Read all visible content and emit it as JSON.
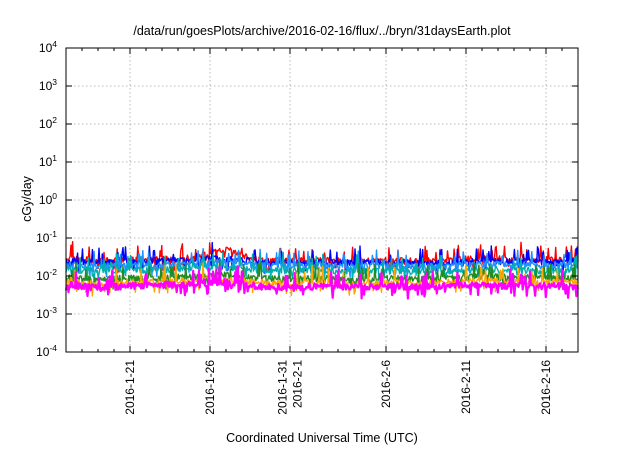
{
  "chart_data": {
    "type": "line",
    "title": "/data/run/goesPlots/archive/2016-02-16/flux/../bryn/31daysEarth.plot",
    "xlabel": "Coordinated Universal Time (UTC)",
    "ylabel": "cGy/day",
    "yscale": "log",
    "ylim": [
      0.0001,
      10000
    ],
    "xlim": [
      "2016-01-17",
      "2016-02-18"
    ],
    "grid": true,
    "y_ticks": [
      {
        "base": "10",
        "exp": "-4",
        "value": 0.0001
      },
      {
        "base": "10",
        "exp": "-3",
        "value": 0.001
      },
      {
        "base": "10",
        "exp": "-2",
        "value": 0.01
      },
      {
        "base": "10",
        "exp": "-1",
        "value": 0.1
      },
      {
        "base": "10",
        "exp": "0",
        "value": 1
      },
      {
        "base": "10",
        "exp": "1",
        "value": 10
      },
      {
        "base": "10",
        "exp": "2",
        "value": 100
      },
      {
        "base": "10",
        "exp": "3",
        "value": 1000
      },
      {
        "base": "10",
        "exp": "4",
        "value": 10000
      }
    ],
    "x_ticks": [
      {
        "date": "2016-01-21",
        "lines": [
          "2016-1-21"
        ]
      },
      {
        "date": "2016-01-26",
        "lines": [
          "2016-1-26"
        ]
      },
      {
        "date": "2016-01-31",
        "lines": [
          "2016-1-31",
          "2016-2-1"
        ]
      },
      {
        "date": "2016-02-06",
        "lines": [
          "2016-2-6"
        ]
      },
      {
        "date": "2016-02-11",
        "lines": [
          "2016-2-11"
        ]
      },
      {
        "date": "2016-02-16",
        "lines": [
          "2016-2-16"
        ]
      }
    ],
    "series": [
      {
        "color": "#ff0000",
        "x": [
          "2016-01-17",
          "2016-01-19",
          "2016-01-21",
          "2016-01-23",
          "2016-01-25",
          "2016-01-27",
          "2016-01-29",
          "2016-01-31",
          "2016-02-02",
          "2016-02-04",
          "2016-02-06",
          "2016-02-08",
          "2016-02-10",
          "2016-02-12",
          "2016-02-14",
          "2016-02-16",
          "2016-02-18"
        ],
        "values": [
          0.03,
          0.025,
          0.026,
          0.028,
          0.03,
          0.05,
          0.027,
          0.025,
          0.026,
          0.024,
          0.026,
          0.025,
          0.026,
          0.03,
          0.028,
          0.027,
          0.028
        ]
      },
      {
        "color": "#0000ff",
        "x": [
          "2016-01-17",
          "2016-01-19",
          "2016-01-21",
          "2016-01-23",
          "2016-01-25",
          "2016-01-27",
          "2016-01-29",
          "2016-01-31",
          "2016-02-02",
          "2016-02-04",
          "2016-02-06",
          "2016-02-08",
          "2016-02-10",
          "2016-02-12",
          "2016-02-14",
          "2016-02-16",
          "2016-02-18"
        ],
        "values": [
          0.025,
          0.022,
          0.023,
          0.025,
          0.026,
          0.03,
          0.024,
          0.022,
          0.023,
          0.022,
          0.023,
          0.022,
          0.023,
          0.026,
          0.024,
          0.023,
          0.024
        ]
      },
      {
        "color": "#1e90ff",
        "x": [
          "2016-01-17",
          "2016-01-19",
          "2016-01-21",
          "2016-01-23",
          "2016-01-25",
          "2016-01-27",
          "2016-01-29",
          "2016-01-31",
          "2016-02-02",
          "2016-02-04",
          "2016-02-06",
          "2016-02-08",
          "2016-02-10",
          "2016-02-12",
          "2016-02-14",
          "2016-02-16",
          "2016-02-18"
        ],
        "values": [
          0.02,
          0.018,
          0.019,
          0.02,
          0.021,
          0.024,
          0.02,
          0.018,
          0.019,
          0.018,
          0.019,
          0.018,
          0.019,
          0.021,
          0.02,
          0.019,
          0.02
        ]
      },
      {
        "color": "#00b0b0",
        "x": [
          "2016-01-17",
          "2016-01-19",
          "2016-01-21",
          "2016-01-23",
          "2016-01-25",
          "2016-01-27",
          "2016-01-29",
          "2016-01-31",
          "2016-02-02",
          "2016-02-04",
          "2016-02-06",
          "2016-02-08",
          "2016-02-10",
          "2016-02-12",
          "2016-02-14",
          "2016-02-16",
          "2016-02-18"
        ],
        "values": [
          0.015,
          0.014,
          0.014,
          0.015,
          0.016,
          0.017,
          0.015,
          0.014,
          0.014,
          0.014,
          0.014,
          0.013,
          0.014,
          0.015,
          0.015,
          0.014,
          0.015
        ]
      },
      {
        "color": "#228b22",
        "x": [
          "2016-01-17",
          "2016-01-19",
          "2016-01-21",
          "2016-01-23",
          "2016-01-25",
          "2016-01-27",
          "2016-01-29",
          "2016-01-31",
          "2016-02-02",
          "2016-02-04",
          "2016-02-06",
          "2016-02-08",
          "2016-02-10",
          "2016-02-12",
          "2016-02-14",
          "2016-02-16",
          "2016-02-18"
        ],
        "values": [
          0.009,
          0.008,
          0.009,
          0.009,
          0.01,
          0.011,
          0.009,
          0.008,
          0.009,
          0.008,
          0.009,
          0.008,
          0.009,
          0.01,
          0.009,
          0.009,
          0.009
        ]
      },
      {
        "color": "#ffa500",
        "x": [
          "2016-01-17",
          "2016-01-19",
          "2016-01-21",
          "2016-01-23",
          "2016-01-25",
          "2016-01-27",
          "2016-01-29",
          "2016-01-31",
          "2016-02-02",
          "2016-02-04",
          "2016-02-06",
          "2016-02-08",
          "2016-02-10",
          "2016-02-12",
          "2016-02-14",
          "2016-02-16",
          "2016-02-18"
        ],
        "values": [
          0.007,
          0.006,
          0.007,
          0.007,
          0.008,
          0.008,
          0.007,
          0.006,
          0.007,
          0.006,
          0.007,
          0.006,
          0.007,
          0.008,
          0.007,
          0.007,
          0.007
        ]
      },
      {
        "color": "#ff00ff",
        "x": [
          "2016-01-17",
          "2016-01-19",
          "2016-01-21",
          "2016-01-23",
          "2016-01-25",
          "2016-01-27",
          "2016-01-29",
          "2016-01-31",
          "2016-02-02",
          "2016-02-04",
          "2016-02-06",
          "2016-02-08",
          "2016-02-10",
          "2016-02-12",
          "2016-02-14",
          "2016-02-16",
          "2016-02-18"
        ],
        "values": [
          0.006,
          0.005,
          0.0055,
          0.006,
          0.006,
          0.007,
          0.0055,
          0.005,
          0.0055,
          0.005,
          0.0055,
          0.005,
          0.0055,
          0.006,
          0.0055,
          0.0055,
          0.0055
        ]
      }
    ]
  }
}
